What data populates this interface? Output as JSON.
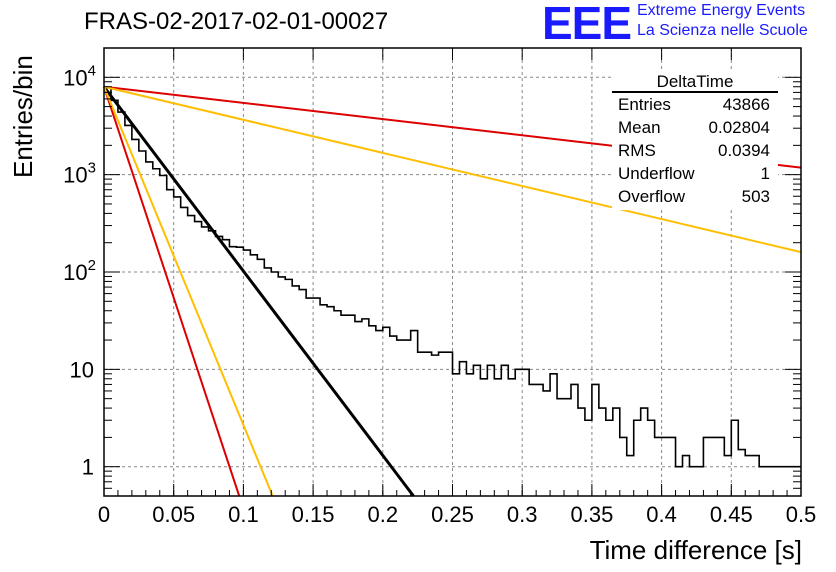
{
  "header": {
    "run_title": "FRAS-02-2017-02-01-00027",
    "logo_mark": "EEE",
    "logo_line1": "Extreme Energy Events",
    "logo_line2": "La Scienza nelle Scuole"
  },
  "stats": {
    "title": "DeltaTime",
    "rows": [
      {
        "label": "Entries",
        "value": "43866"
      },
      {
        "label": "Mean",
        "value": "0.02804"
      },
      {
        "label": "RMS",
        "value": "0.0394"
      },
      {
        "label": "Underflow",
        "value": "1"
      },
      {
        "label": "Overflow",
        "value": "503"
      }
    ]
  },
  "chart_data": {
    "type": "histogram",
    "title": "FRAS-02-2017-02-01-00027",
    "xlabel": "Time difference [s]",
    "ylabel": "Entries/bin",
    "xlim": [
      0,
      0.5
    ],
    "ylim": [
      0.5,
      20000
    ],
    "yscale": "log",
    "grid": true,
    "xticks": [
      0,
      0.05,
      0.1,
      0.15,
      0.2,
      0.25,
      0.3,
      0.35,
      0.4,
      0.45,
      0.5
    ],
    "xtick_labels": [
      "0",
      "0.05",
      "0.1",
      "0.15",
      "0.2",
      "0.25",
      "0.3",
      "0.35",
      "0.4",
      "0.45",
      "0.5"
    ],
    "yticks": [
      1,
      10,
      100,
      1000,
      10000
    ],
    "ytick_labels": [
      {
        "base": "1",
        "exp": ""
      },
      {
        "base": "10",
        "exp": ""
      },
      {
        "base": "10",
        "exp": "2"
      },
      {
        "base": "10",
        "exp": "3"
      },
      {
        "base": "10",
        "exp": "4"
      }
    ],
    "bin_width": 0.005,
    "bin_counts": [
      7800,
      5800,
      4400,
      3200,
      2300,
      1750,
      1350,
      1150,
      980,
      700,
      590,
      460,
      380,
      330,
      290,
      265,
      232,
      215,
      182,
      180,
      168,
      150,
      135,
      110,
      100,
      89,
      84,
      72,
      66,
      54,
      54,
      46,
      44,
      40,
      36,
      36,
      31,
      33,
      28,
      25,
      27,
      22,
      20,
      20,
      25,
      15,
      15,
      14,
      15,
      15,
      9,
      12,
      9,
      11,
      8,
      11,
      8,
      11,
      8,
      10,
      10,
      7,
      7,
      6,
      9,
      5,
      5,
      7,
      4,
      3,
      7,
      4,
      3,
      4,
      2,
      1.3,
      3,
      4,
      3,
      2,
      2,
      2,
      1,
      1.3,
      1,
      1,
      2,
      2,
      2,
      1.3,
      3,
      1.5,
      1.3,
      1.3,
      1,
      1,
      1,
      1,
      1,
      1
    ],
    "series": [
      {
        "name": "",
        "color": "#000000",
        "x": [
          0,
          0.222
        ],
        "y": [
          8000,
          0.5
        ]
      },
      {
        "name": "",
        "color": "#dd0000",
        "x": [
          0,
          0.097
        ],
        "y": [
          8000,
          0.5
        ]
      },
      {
        "name": "",
        "color": "#ffbf00",
        "x": [
          0,
          0.121
        ],
        "y": [
          8000,
          0.5
        ]
      },
      {
        "name": "",
        "color": "#dd0000",
        "x": [
          0,
          0.5
        ],
        "y": [
          8000,
          1180
        ]
      },
      {
        "name": "",
        "color": "#ffbf00",
        "x": [
          0,
          0.5
        ],
        "y": [
          8000,
          160
        ]
      }
    ]
  }
}
